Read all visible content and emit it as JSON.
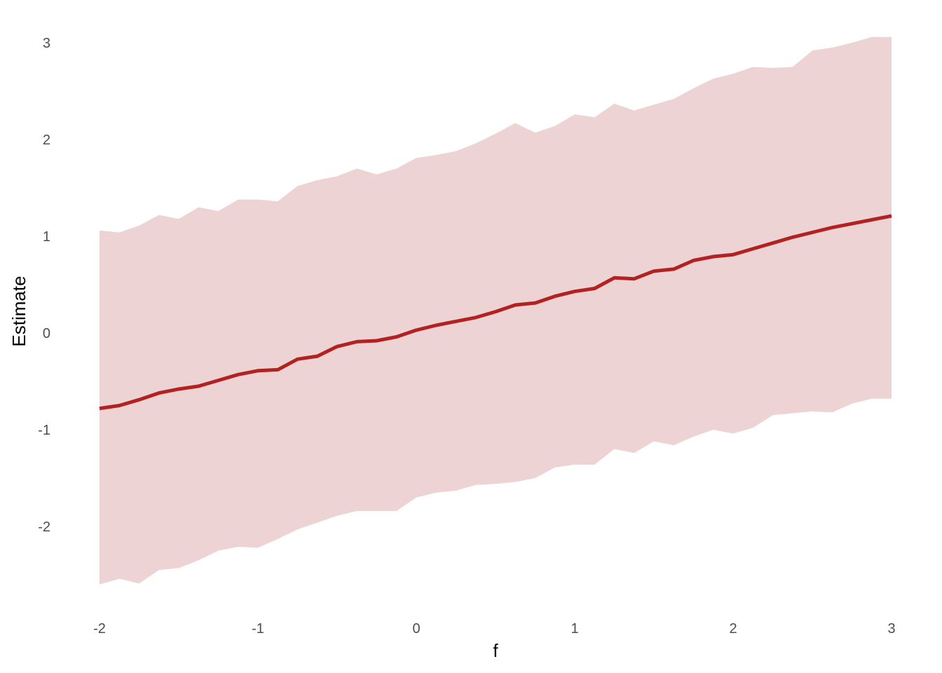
{
  "chart_data": {
    "type": "line",
    "title": "",
    "xlabel": "f",
    "ylabel": "Estimate",
    "xlim": [
      -2,
      3
    ],
    "ylim": [
      -2.8,
      3.2
    ],
    "xticks": [
      -2,
      -1,
      0,
      1,
      2,
      3
    ],
    "yticks": [
      -2,
      -1,
      0,
      1,
      2,
      3
    ],
    "grid": false,
    "legend": "none",
    "colors": {
      "line": "#B22222",
      "ribbon": "#EDD3D3"
    },
    "series": [
      {
        "x": [
          -2.0,
          -1.875,
          -1.75,
          -1.625,
          -1.5,
          -1.375,
          -1.25,
          -1.125,
          -1.0,
          -0.875,
          -0.75,
          -0.625,
          -0.5,
          -0.375,
          -0.25,
          -0.125,
          0.0,
          0.125,
          0.25,
          0.375,
          0.5,
          0.625,
          0.75,
          0.875,
          1.0,
          1.125,
          1.25,
          1.375,
          1.5,
          1.625,
          1.75,
          1.875,
          2.0,
          2.125,
          2.25,
          2.375,
          2.5,
          2.625,
          2.75,
          2.875,
          3.0
        ],
        "y": [
          -0.78,
          -0.75,
          -0.69,
          -0.62,
          -0.58,
          -0.55,
          -0.49,
          -0.43,
          -0.39,
          -0.38,
          -0.27,
          -0.24,
          -0.14,
          -0.09,
          -0.08,
          -0.04,
          0.03,
          0.08,
          0.12,
          0.16,
          0.22,
          0.29,
          0.31,
          0.38,
          0.43,
          0.46,
          0.57,
          0.56,
          0.64,
          0.66,
          0.75,
          0.79,
          0.81,
          0.87,
          0.93,
          0.99,
          1.04,
          1.09,
          1.13,
          1.17,
          1.21
        ],
        "lower": [
          -2.6,
          -2.54,
          -2.59,
          -2.45,
          -2.43,
          -2.35,
          -2.25,
          -2.21,
          -2.22,
          -2.13,
          -2.03,
          -1.96,
          -1.89,
          -1.84,
          -1.84,
          -1.84,
          -1.7,
          -1.65,
          -1.63,
          -1.57,
          -1.56,
          -1.54,
          -1.5,
          -1.39,
          -1.36,
          -1.36,
          -1.2,
          -1.24,
          -1.12,
          -1.16,
          -1.07,
          -1.0,
          -1.04,
          -0.98,
          -0.85,
          -0.83,
          -0.81,
          -0.82,
          -0.73,
          -0.68,
          -0.68
        ],
        "upper": [
          1.06,
          1.04,
          1.11,
          1.22,
          1.18,
          1.3,
          1.26,
          1.38,
          1.38,
          1.36,
          1.52,
          1.58,
          1.62,
          1.7,
          1.64,
          1.7,
          1.81,
          1.84,
          1.88,
          1.96,
          2.06,
          2.17,
          2.07,
          2.14,
          2.26,
          2.23,
          2.37,
          2.3,
          2.36,
          2.42,
          2.53,
          2.63,
          2.68,
          2.75,
          2.74,
          2.75,
          2.92,
          2.95,
          3.0,
          3.06,
          3.06
        ]
      }
    ]
  }
}
